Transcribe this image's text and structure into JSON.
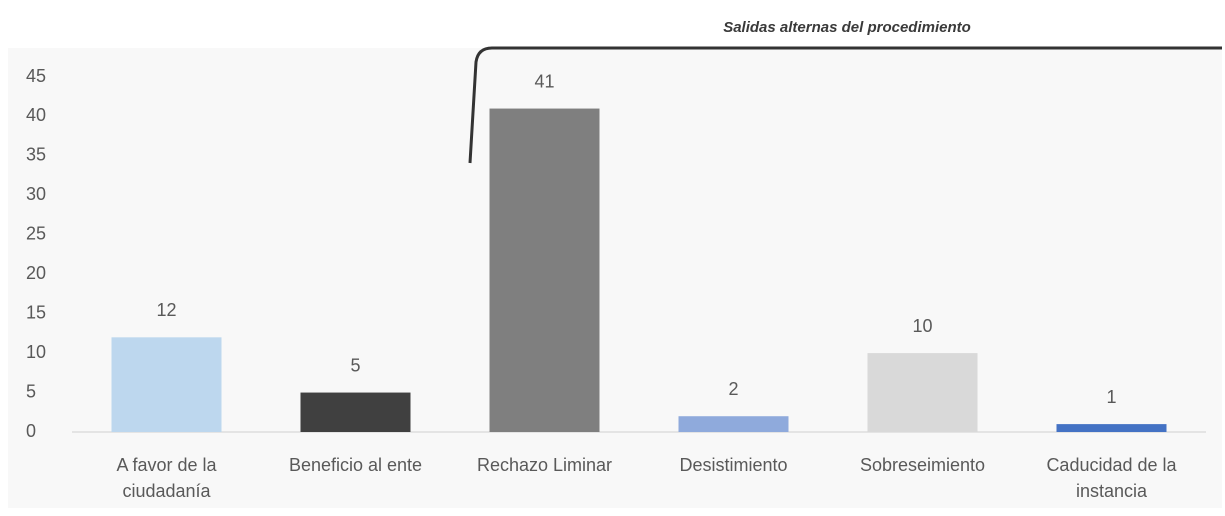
{
  "chart_data": {
    "type": "bar",
    "annotation": "Salidas alternas del procedimiento",
    "categories": [
      "A favor de la ciudadanía",
      "Beneficio al ente",
      "Rechazo Liminar",
      "Desistimiento",
      "Sobreseimiento",
      "Caducidad de la instancia"
    ],
    "values": [
      12,
      5,
      41,
      2,
      10,
      1
    ],
    "colors": [
      "#bdd7ee",
      "#404040",
      "#7f7f7f",
      "#8faadc",
      "#d9d9d9",
      "#4472c4"
    ],
    "ylim": [
      0,
      45
    ],
    "yticks": [
      0,
      5,
      10,
      15,
      20,
      25,
      30,
      35,
      40,
      45
    ],
    "grid": false
  }
}
